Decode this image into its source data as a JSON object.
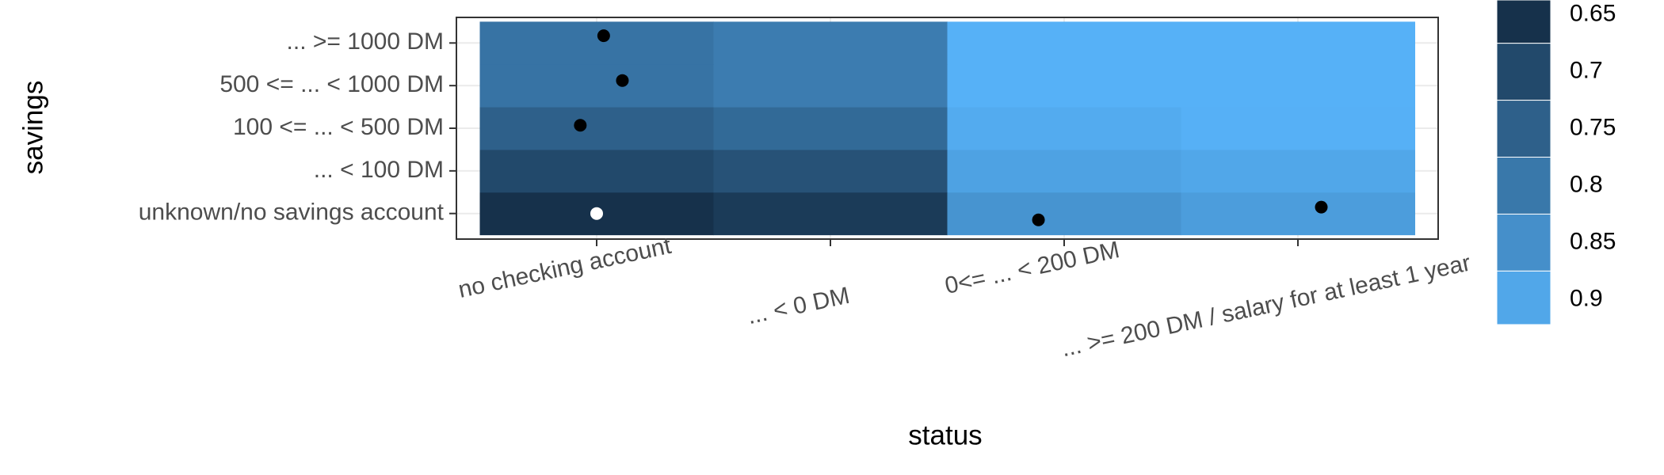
{
  "chart_data": {
    "type": "heatmap",
    "x_label": "status",
    "y_label": "savings",
    "x_categories": [
      "no checking account",
      "... < 0 DM",
      "0<= ... < 200 DM",
      "... >= 200 DM / salary for at least 1 year"
    ],
    "y_categories": [
      "unknown/no savings account",
      "... < 100 DM",
      "100 <= ... < 500 DM",
      "500 <= ... < 1000 DM",
      "... >= 1000 DM"
    ],
    "z": [
      [
        0.65,
        0.67,
        0.86,
        0.88
      ],
      [
        0.7,
        0.72,
        0.89,
        0.9
      ],
      [
        0.75,
        0.77,
        0.91,
        0.92
      ],
      [
        0.79,
        0.81,
        0.93,
        0.93
      ],
      [
        0.79,
        0.81,
        0.93,
        0.93
      ]
    ],
    "color_low": "#132b43",
    "color_high": "#56b1f7",
    "colorbar_lim": [
      0.637,
      0.922
    ],
    "colorbar_ticks": [
      0.65,
      0.7,
      0.75,
      0.8,
      0.85,
      0.9
    ],
    "points": [
      {
        "x": 0.03,
        "y": 4.17,
        "color": "#000000"
      },
      {
        "x": 0.11,
        "y": 3.12,
        "color": "#000000"
      },
      {
        "x": -0.07,
        "y": 2.07,
        "color": "#000000"
      },
      {
        "x": 0.0,
        "y": 0.0,
        "color": "#ffffff"
      },
      {
        "x": 1.89,
        "y": -0.15,
        "color": "#000000"
      },
      {
        "x": 3.1,
        "y": 0.15,
        "color": "#000000"
      }
    ]
  }
}
